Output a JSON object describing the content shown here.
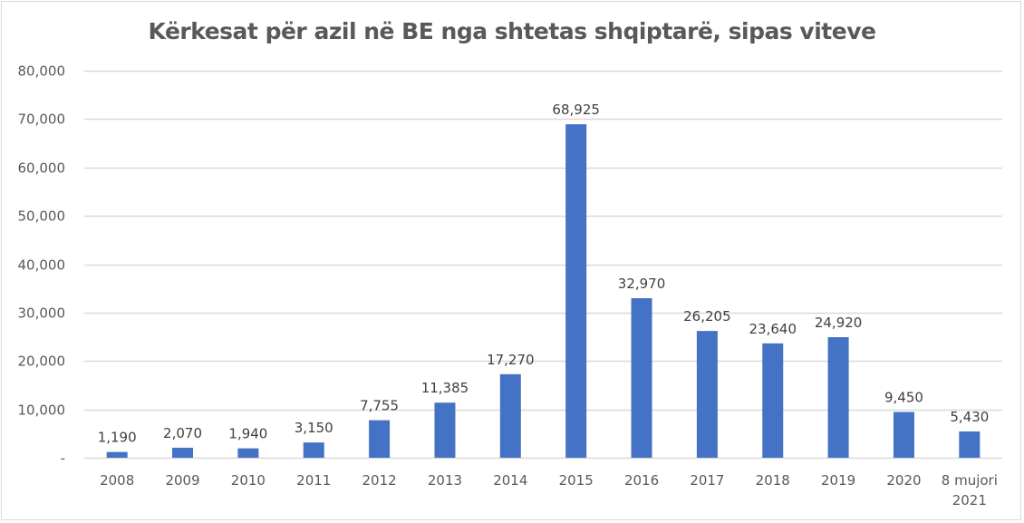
{
  "chart_data": {
    "type": "bar",
    "title": "Kërkesat për azil në BE nga shtetas shqiptarë, sipas viteve",
    "xlabel": "",
    "ylabel": "",
    "ylim": [
      0,
      80000
    ],
    "y_ticks": [
      0,
      10000,
      20000,
      30000,
      40000,
      50000,
      60000,
      70000,
      80000
    ],
    "y_tick_labels": [
      "-",
      "10,000",
      "20,000",
      "30,000",
      "40,000",
      "50,000",
      "60,000",
      "70,000",
      "80,000"
    ],
    "grid": true,
    "legend": "none",
    "bar_color": "#4472c4",
    "categories": [
      "2008",
      "2009",
      "2010",
      "2011",
      "2012",
      "2013",
      "2014",
      "2015",
      "2016",
      "2017",
      "2018",
      "2019",
      "2020",
      "8 mujori\n2021"
    ],
    "values": [
      1190,
      2070,
      1940,
      3150,
      7755,
      11385,
      17270,
      68925,
      32970,
      26205,
      23640,
      24920,
      9450,
      5430
    ],
    "data_labels": [
      "1,190",
      "2,070",
      "1,940",
      "3,150",
      "7,755",
      "11,385",
      "17,270",
      "68,925",
      "32,970",
      "26,205",
      "23,640",
      "24,920",
      "9,450",
      "5,430"
    ]
  }
}
